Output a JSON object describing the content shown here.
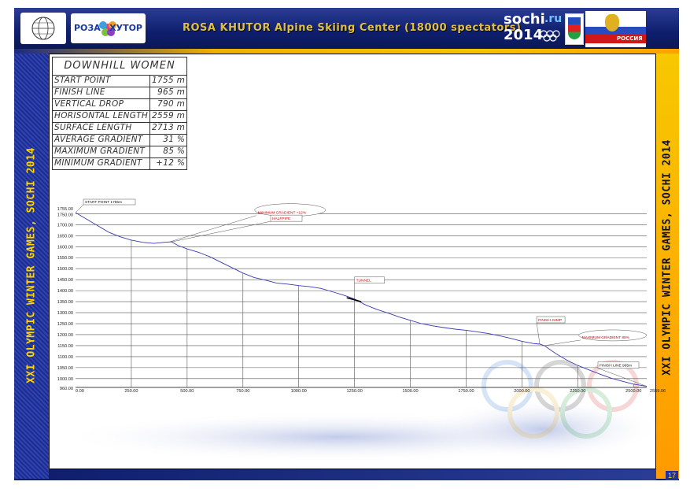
{
  "header": {
    "title": "ROSA KHUTOR  Alpine Skiing Center (18000 spectators)",
    "logo_rosa": "РОЗА ХУТОР",
    "logo_sochi_line1": "sochi",
    "logo_sochi_ru": ".ru",
    "logo_sochi_line2": "2014",
    "logo_russia": "РОССИЯ"
  },
  "side_text": "XXI OLYMPIC WINTER GAMES, SOCHI 2014",
  "page_number": "17",
  "spec_table": {
    "heading": "DOWNHILL WOMEN",
    "rows": [
      {
        "label": "START POINT",
        "value": "1755 m"
      },
      {
        "label": "FINISH LINE",
        "value": "965 m"
      },
      {
        "label": "VERTICAL DROP",
        "value": "790 m"
      },
      {
        "label": "HORISONTAL LENGTH",
        "value": "2559 m"
      },
      {
        "label": "SURFACE LENGTH",
        "value": "2713 m"
      },
      {
        "label": "AVERAGE GRADIENT",
        "value": "31 %"
      },
      {
        "label": "MAXIMUM GRADIENT",
        "value": "85 %"
      },
      {
        "label": "MINIMUM GRADIENT",
        "value": "+12 %"
      }
    ]
  },
  "colors": {
    "profile_line": "#3a3ab0",
    "annotation_red": "#cc0000",
    "grid": "#555555"
  },
  "chart_data": {
    "type": "line",
    "title": "",
    "xlabel": "",
    "ylabel": "",
    "xlim": [
      0,
      2559.06
    ],
    "ylim": [
      960,
      1755
    ],
    "x_ticks": [
      0,
      250,
      500,
      750,
      1000,
      1250,
      1500,
      1750,
      2000,
      2250,
      2500
    ],
    "x_tick_labels": [
      "0.00",
      "250.00",
      "500.00",
      "750.00",
      "1000.00",
      "1250.00",
      "1500.00",
      "1750.00",
      "2000.00",
      "2250.00",
      "2500.00"
    ],
    "x_end_label": "2559.06",
    "y_ticks": [
      960,
      1000,
      1050,
      1100,
      1150,
      1200,
      1250,
      1300,
      1350,
      1400,
      1450,
      1500,
      1550,
      1600,
      1650,
      1700,
      1750,
      1755
    ],
    "y_tick_labels": [
      "960.00",
      "1000.00",
      "1050.00",
      "1100.00",
      "1150.00",
      "1200.00",
      "1250.00",
      "1300.00",
      "1350.00",
      "1400.00",
      "1450.00",
      "1500.00",
      "1550.00",
      "1600.00",
      "1650.00",
      "1700.00",
      "1750.00",
      "1755.00"
    ],
    "grid": true,
    "series": [
      {
        "x": [
          0,
          50,
          100,
          150,
          200,
          250,
          300,
          350,
          400,
          430,
          460,
          500,
          550,
          600,
          650,
          700,
          750,
          800,
          850,
          900,
          950,
          1000,
          1050,
          1100,
          1150,
          1200,
          1250,
          1300,
          1350,
          1400,
          1450,
          1500,
          1550,
          1600,
          1650,
          1700,
          1750,
          1800,
          1850,
          1900,
          1950,
          2000,
          2050,
          2080,
          2100,
          2150,
          2200,
          2250,
          2300,
          2350,
          2400,
          2450,
          2500,
          2559.06
        ],
        "y": [
          1755,
          1725,
          1695,
          1665,
          1645,
          1630,
          1620,
          1615,
          1620,
          1622,
          1605,
          1590,
          1575,
          1555,
          1530,
          1505,
          1480,
          1460,
          1448,
          1435,
          1430,
          1423,
          1418,
          1410,
          1395,
          1380,
          1362,
          1335,
          1315,
          1298,
          1280,
          1265,
          1250,
          1240,
          1232,
          1225,
          1220,
          1213,
          1205,
          1195,
          1183,
          1170,
          1160,
          1157,
          1150,
          1115,
          1085,
          1060,
          1040,
          1020,
          1002,
          988,
          975,
          965
        ]
      }
    ],
    "annotations": [
      {
        "text": "START POINT 1755m",
        "x": 0,
        "y": 1755,
        "color": "#111111"
      },
      {
        "text": "MINIMUM GRADIENT +12%",
        "x": 415,
        "y": 1620,
        "color": "#cc0000"
      },
      {
        "text": "HALFPIPE",
        "x": 430,
        "y": 1622,
        "color": "#cc0000"
      },
      {
        "text": "TUNNEL",
        "x": 1250,
        "y": 1362,
        "color": "#cc0000"
      },
      {
        "text": "FINISH JUMP",
        "x": 2080,
        "y": 1157,
        "color": "#cc0000"
      },
      {
        "text": "MAXIMUM GRADIENT 85%",
        "x": 2100,
        "y": 1150,
        "color": "#cc0000"
      },
      {
        "text": "FINISH LINE 965m",
        "x": 2559.06,
        "y": 965,
        "color": "#111111"
      }
    ]
  }
}
